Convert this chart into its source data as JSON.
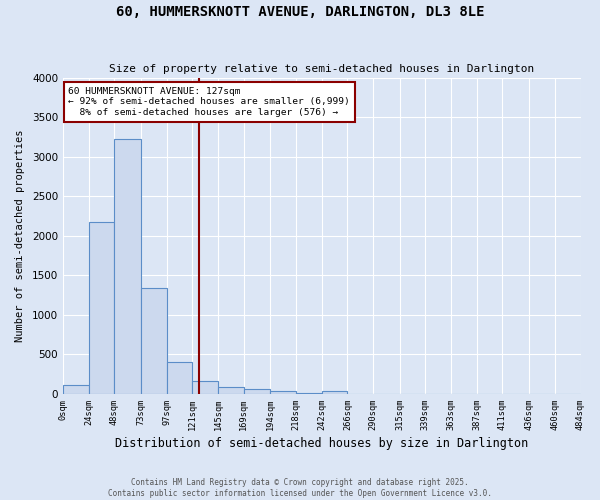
{
  "title": "60, HUMMERSKNOTT AVENUE, DARLINGTON, DL3 8LE",
  "subtitle": "Size of property relative to semi-detached houses in Darlington",
  "xlabel": "Distribution of semi-detached houses by size in Darlington",
  "ylabel": "Number of semi-detached properties",
  "bin_edges": [
    0,
    24,
    48,
    73,
    97,
    121,
    145,
    169,
    194,
    218,
    242,
    266,
    290,
    315,
    339,
    363,
    387,
    411,
    436,
    460,
    484
  ],
  "bin_counts": [
    115,
    2175,
    3225,
    1340,
    400,
    160,
    90,
    55,
    30,
    10,
    40,
    0,
    0,
    0,
    0,
    0,
    0,
    0,
    0,
    0
  ],
  "bar_color": "#ccd9ee",
  "bar_edge_color": "#5b8dc8",
  "property_size": 127,
  "property_line_color": "#8b0000",
  "annotation_text": "60 HUMMERSKNOTT AVENUE: 127sqm\n← 92% of semi-detached houses are smaller (6,999)\n  8% of semi-detached houses are larger (576) →",
  "annotation_box_color": "#ffffff",
  "annotation_box_edge": "#8b0000",
  "ylim": [
    0,
    4000
  ],
  "tick_labels": [
    "0sqm",
    "24sqm",
    "48sqm",
    "73sqm",
    "97sqm",
    "121sqm",
    "145sqm",
    "169sqm",
    "194sqm",
    "218sqm",
    "242sqm",
    "266sqm",
    "290sqm",
    "315sqm",
    "339sqm",
    "363sqm",
    "387sqm",
    "411sqm",
    "436sqm",
    "460sqm",
    "484sqm"
  ],
  "background_color": "#dce6f5",
  "grid_color": "#ffffff",
  "footer_line1": "Contains HM Land Registry data © Crown copyright and database right 2025.",
  "footer_line2": "Contains public sector information licensed under the Open Government Licence v3.0."
}
